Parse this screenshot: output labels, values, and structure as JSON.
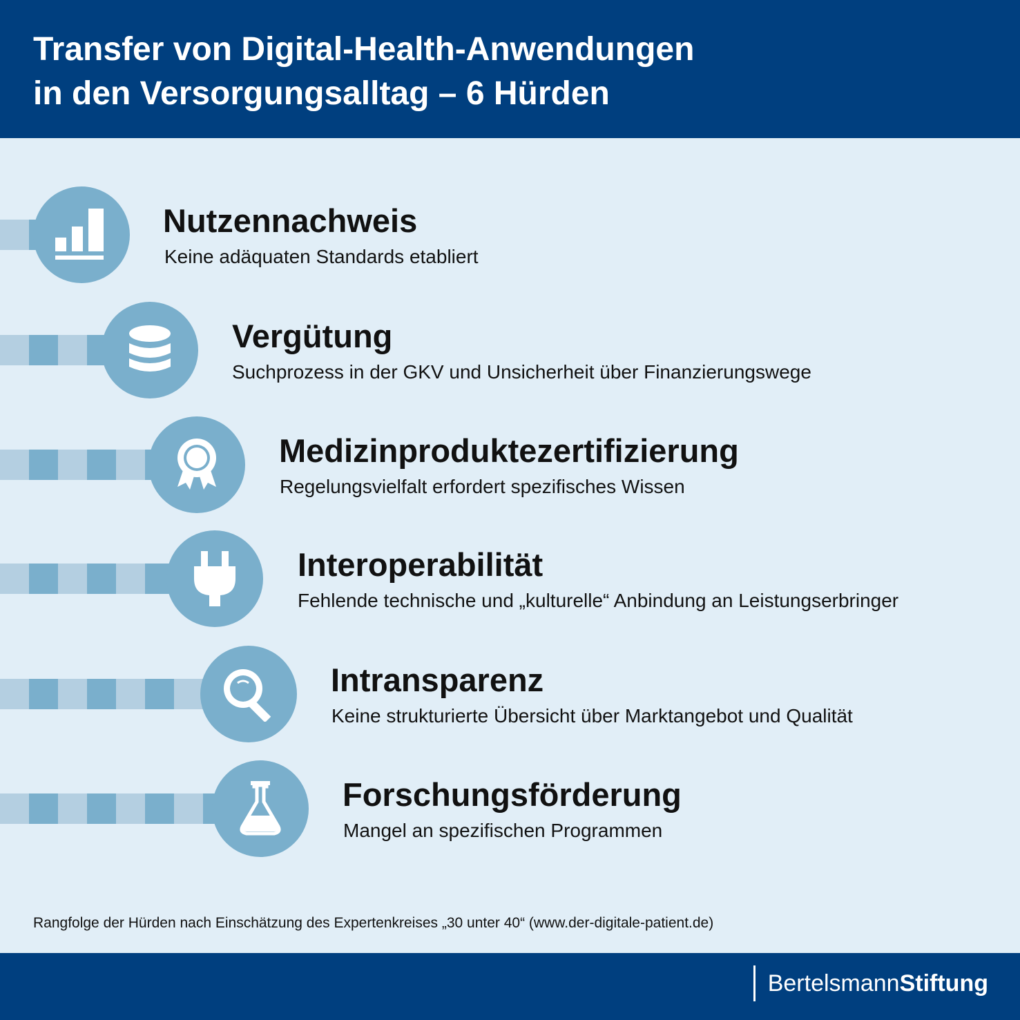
{
  "header": {
    "title_line1": "Transfer von Digital-Health-Anwendungen",
    "title_line2": "in den Versorgungsalltag – 6 Hürden"
  },
  "hurdles": [
    {
      "title": "Nutzennachweis",
      "description": "Keine adäquaten Standards etabliert",
      "icon": "bar-chart-icon"
    },
    {
      "title": "Vergütung",
      "description": "Suchprozess in der GKV und Unsicherheit über Finanzierungswege",
      "icon": "coin-stack-icon"
    },
    {
      "title": "Medizinproduktezertifizierung",
      "description": "Regelungsvielfalt erfordert spezifisches Wissen",
      "icon": "award-ribbon-icon"
    },
    {
      "title": "Interoperabilität",
      "description": "Fehlende technische und „kulturelle“ Anbindung an Leistungserbringer",
      "icon": "plug-icon"
    },
    {
      "title": "Intransparenz",
      "description": "Keine strukturierte Übersicht über Marktangebot und Qualität",
      "icon": "magnifier-icon"
    },
    {
      "title": "Forschungsförderung",
      "description": "Mangel an spezifischen Programmen",
      "icon": "flask-icon"
    }
  ],
  "footnote": "Rangfolge der Hürden nach Einschätzung des Expertenkreises „30 unter 40“ (www.der-digitale-patient.de)",
  "footer": {
    "logo_light": "Bertelsmann",
    "logo_bold": "Stiftung"
  },
  "colors": {
    "header_bg": "#003f7f",
    "page_bg": "#e1eef7",
    "circle": "#7aafcc",
    "stripe_light": "#b4cfe1",
    "stripe_dark": "#7aafcc"
  }
}
